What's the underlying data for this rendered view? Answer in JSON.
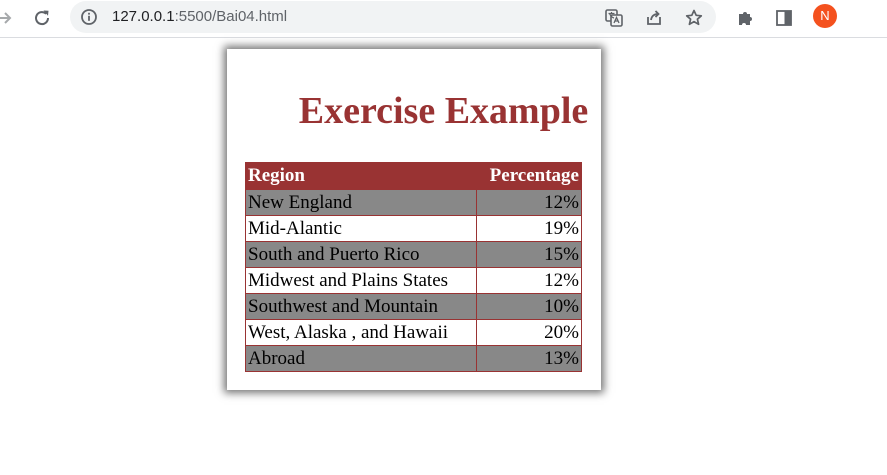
{
  "browser": {
    "url_host": "127.0.0.1",
    "url_path": ":5500/Bai04.html",
    "profile_initial": "N",
    "icons": {
      "forward": "arrow-right-icon",
      "reload": "reload-icon",
      "info": "info-icon",
      "translate": "translate-icon",
      "share": "share-icon",
      "bookmark": "star-icon",
      "extensions": "puzzle-icon",
      "side_panel": "side-panel-icon"
    }
  },
  "page": {
    "title": "Exercise Example",
    "title_color": "#993333",
    "table": {
      "headers": [
        "Region",
        "Percentage"
      ],
      "rows": [
        {
          "region": "New England",
          "percentage": "12%"
        },
        {
          "region": "Mid-Alantic",
          "percentage": "19%"
        },
        {
          "region": "South and Puerto Rico",
          "percentage": "15%"
        },
        {
          "region": "Midwest and Plains States",
          "percentage": "12%"
        },
        {
          "region": "Southwest and Mountain",
          "percentage": "10%"
        },
        {
          "region": "West, Alaska , and Hawaii",
          "percentage": "20%"
        },
        {
          "region": "Abroad",
          "percentage": "13%"
        }
      ],
      "header_bg": "#993333",
      "odd_row_bg": "#888888",
      "even_row_bg": "#ffffff"
    }
  }
}
